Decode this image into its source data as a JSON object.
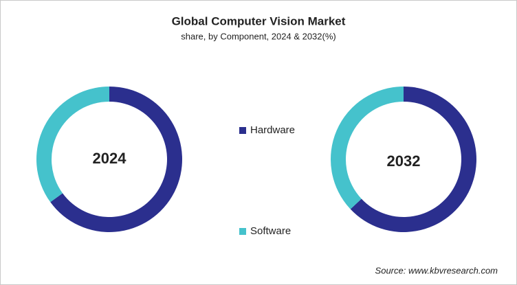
{
  "title": "Global Computer  Vision Market",
  "subtitle": "share, by Component, 2024 & 2032(%)",
  "source": "Source: www.kbvresearch.com",
  "chart_data": [
    {
      "type": "pie",
      "title": "2024",
      "categories": [
        "Hardware",
        "Software"
      ],
      "values": [
        65,
        35
      ],
      "colors": [
        "#2b2f8e",
        "#45c2cc"
      ]
    },
    {
      "type": "pie",
      "title": "2032",
      "categories": [
        "Hardware",
        "Software"
      ],
      "values": [
        63,
        37
      ],
      "colors": [
        "#2b2f8e",
        "#45c2cc"
      ]
    }
  ]
}
